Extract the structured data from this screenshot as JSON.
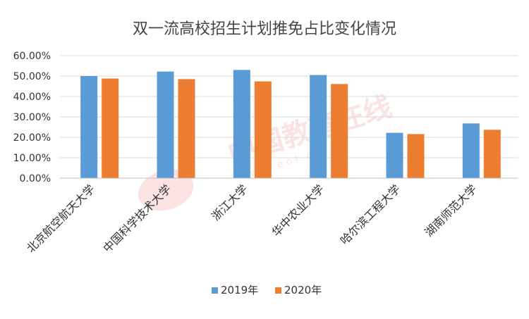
{
  "chart_data": {
    "type": "bar",
    "title": "双一流高校招生计划推免占比变化情况",
    "categories": [
      "北京航空航天大学",
      "中国科学技术大学",
      "浙江大学",
      "华中农业大学",
      "哈尔滨工程大学",
      "湖南师范大学"
    ],
    "series": [
      {
        "name": "2019年",
        "values": [
          0.5,
          0.522,
          0.53,
          0.505,
          0.222,
          0.268
        ],
        "color": "#5B9BD5"
      },
      {
        "name": "2020年",
        "values": [
          0.488,
          0.485,
          0.474,
          0.461,
          0.216,
          0.237
        ],
        "color": "#ED7D31"
      }
    ],
    "y_ticks": [
      "0.00%",
      "10.00%",
      "20.00%",
      "30.00%",
      "40.00%",
      "50.00%",
      "60.00%"
    ],
    "ylim": [
      0,
      0.6
    ],
    "xlabel": "",
    "ylabel": "",
    "grid": true,
    "legend_position": "bottom",
    "watermark_text": "中国教育在线"
  }
}
